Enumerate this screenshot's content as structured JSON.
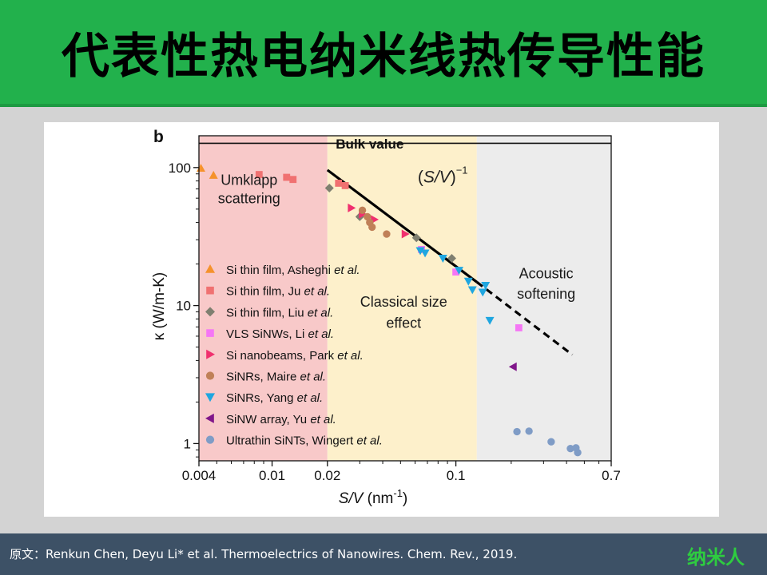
{
  "header": {
    "title": "代表性热电纳米线热传导性能"
  },
  "footer": {
    "citation": "原文：Renkun Chen, Deyu Li* et al. Thermoelectrics of Nanowires. Chem. Rev., 2019.",
    "logo": "纳米人"
  },
  "colors": {
    "header_bg": "#22b14c",
    "footer_bg": "#3d5166",
    "accent": "#2ecc40"
  },
  "chart_data": {
    "type": "scatter",
    "panel_label": "b",
    "x_scale": "log",
    "y_scale": "log",
    "xlim": [
      0.004,
      0.7
    ],
    "ylim": [
      0.75,
      170
    ],
    "xticks": [
      0.004,
      0.01,
      0.02,
      0.1,
      0.7
    ],
    "xtick_labels": [
      "0.004",
      "0.01",
      "0.02",
      "0.1",
      "0.7"
    ],
    "yticks": [
      1,
      10,
      100
    ],
    "ytick_labels": [
      "1",
      "10",
      "100"
    ],
    "xlabel_main": "S/V",
    "xlabel_unit": " (nm",
    "xlabel_exp": "-1",
    "xlabel_close": ")",
    "ylabel": "κ (W/m-K)",
    "bulk_label": "Bulk value",
    "bulk_value": 150,
    "regions": [
      {
        "x0": 0.004,
        "x1": 0.02,
        "color": "#f8c9c9",
        "label1": "Umklapp",
        "label2": "scattering",
        "label_x": 0.0075,
        "label_y1": 75,
        "label_y2": 55
      },
      {
        "x0": 0.02,
        "x1": 0.13,
        "color": "#fdf0cb",
        "label1": "Classical size",
        "label2": "effect",
        "label_x": 0.052,
        "label_y1": 9.8,
        "label_y2": 6.9
      },
      {
        "x0": 0.13,
        "x1": 0.7,
        "color": "#ececec",
        "label1": "Acoustic",
        "label2": "softening",
        "label_x": 0.31,
        "label_y1": 15.8,
        "label_y2": 11.2
      }
    ],
    "fit_label_open": "(",
    "fit_label_math": "S/V",
    "fit_label_close": ")",
    "fit_label_exp": "−1",
    "fit_label_x": 0.062,
    "fit_label_y": 78,
    "fit_line": {
      "solid": [
        [
          0.02,
          96
        ],
        [
          0.13,
          14.8
        ]
      ],
      "dashed": [
        [
          0.13,
          14.8
        ],
        [
          0.43,
          4.4
        ]
      ]
    },
    "series": [
      {
        "name": "Si thin film, Asheghi ",
        "name_italic": "et al.",
        "marker": "triangle-up",
        "color": "#f5922c",
        "x": [
          0.0041,
          0.0048
        ],
        "y": [
          99,
          88
        ]
      },
      {
        "name": "Si thin film, Ju ",
        "name_italic": "et al.",
        "marker": "square",
        "color": "#f07171",
        "x": [
          0.0085,
          0.012,
          0.013,
          0.023,
          0.025
        ],
        "y": [
          89,
          85,
          82,
          77,
          74
        ]
      },
      {
        "name": "Si thin film, Liu ",
        "name_italic": "et al.",
        "marker": "diamond",
        "color": "#7f7f70",
        "x": [
          0.0205,
          0.03,
          0.061,
          0.095
        ],
        "y": [
          71,
          44,
          31,
          22
        ]
      },
      {
        "name": "VLS SiNWs, Li ",
        "name_italic": "et al.",
        "marker": "square",
        "color": "#f576f5",
        "x": [
          0.065,
          0.1,
          0.22
        ],
        "y": [
          25.5,
          17.5,
          6.9
        ]
      },
      {
        "name": "Si nanobeams, Park ",
        "name_italic": "et al.",
        "marker": "triangle-right",
        "color": "#f0306e",
        "x": [
          0.027,
          0.031,
          0.036,
          0.053
        ],
        "y": [
          51,
          46,
          42,
          33
        ]
      },
      {
        "name": "SiNRs, Maire ",
        "name_italic": "et al.",
        "marker": "circle",
        "color": "#c08058",
        "x": [
          0.031,
          0.033,
          0.034,
          0.035,
          0.042
        ],
        "y": [
          49,
          44,
          40,
          37,
          33
        ]
      },
      {
        "name": "SiNRs, Yang ",
        "name_italic": "et al.",
        "marker": "triangle-down",
        "color": "#1fa6e0",
        "x": [
          0.064,
          0.068,
          0.085,
          0.104,
          0.117,
          0.123,
          0.14,
          0.145,
          0.153
        ],
        "y": [
          25,
          24,
          22,
          18,
          15,
          13,
          12.5,
          14,
          7.8
        ]
      },
      {
        "name": "SiNW array, Yu ",
        "name_italic": "et al.",
        "marker": "triangle-left",
        "color": "#80168a",
        "x": [
          0.205
        ],
        "y": [
          3.6
        ]
      },
      {
        "name": "Ultrathin SiNTs, Wingert ",
        "name_italic": "et al.",
        "marker": "circle",
        "color": "#7f9cc6",
        "x": [
          0.215,
          0.25,
          0.33,
          0.42,
          0.45,
          0.46
        ],
        "y": [
          1.22,
          1.23,
          1.03,
          0.92,
          0.93,
          0.86
        ]
      }
    ]
  }
}
